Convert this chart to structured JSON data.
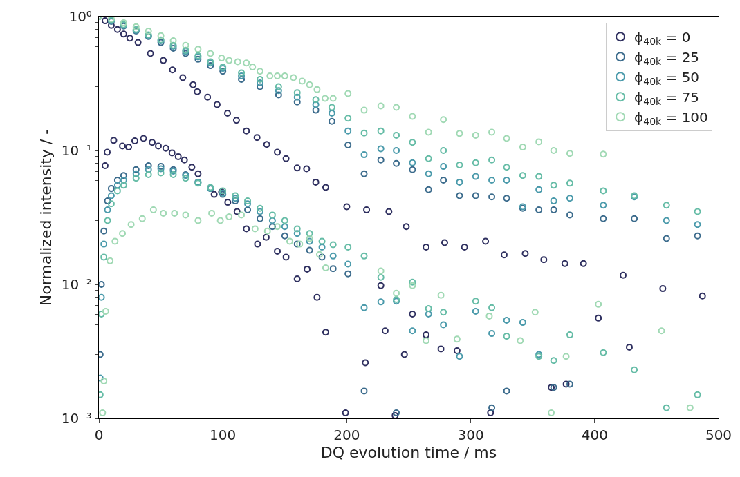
{
  "chart_data": {
    "type": "scatter",
    "xlabel": "DQ evolution time / ms",
    "ylabel": "Normalized intensity / -",
    "xlim": [
      0,
      500
    ],
    "xticks": [
      0,
      100,
      200,
      300,
      400,
      500
    ],
    "ylim": [
      0.001,
      1
    ],
    "log": "y",
    "yticks": [
      {
        "value": 0.001,
        "label": "10⁻³"
      },
      {
        "value": 0.002,
        "label": null
      },
      {
        "value": 0.003,
        "label": null
      },
      {
        "value": 0.004,
        "label": null
      },
      {
        "value": 0.005,
        "label": null
      },
      {
        "value": 0.006,
        "label": null
      },
      {
        "value": 0.007,
        "label": null
      },
      {
        "value": 0.008,
        "label": null
      },
      {
        "value": 0.009,
        "label": null
      },
      {
        "value": 0.01,
        "label": "10⁻²"
      },
      {
        "value": 0.02,
        "label": null
      },
      {
        "value": 0.03,
        "label": null
      },
      {
        "value": 0.04,
        "label": null
      },
      {
        "value": 0.05,
        "label": null
      },
      {
        "value": 0.06,
        "label": null
      },
      {
        "value": 0.07,
        "label": null
      },
      {
        "value": 0.08,
        "label": null
      },
      {
        "value": 0.09,
        "label": null
      },
      {
        "value": 0.1,
        "label": "10⁻¹"
      },
      {
        "value": 0.2,
        "label": null
      },
      {
        "value": 0.3,
        "label": null
      },
      {
        "value": 0.4,
        "label": null
      },
      {
        "value": 0.5,
        "label": null
      },
      {
        "value": 0.6,
        "label": null
      },
      {
        "value": 0.7,
        "label": null
      },
      {
        "value": 0.8,
        "label": null
      },
      {
        "value": 0.9,
        "label": null
      },
      {
        "value": 1,
        "label": "10⁰"
      }
    ],
    "legend": "top right",
    "marker": "circle",
    "series": [
      {
        "name": "ϕ$_{40k}$ = 0",
        "color": "#2e2f5f",
        "x": [
          0,
          5,
          10,
          15,
          20,
          25,
          31.6,
          41.6,
          52,
          59.4,
          67.7,
          76,
          79.4,
          87.7,
          95.4,
          103.8,
          111,
          119,
          127.6,
          135.4,
          144,
          151,
          160,
          167.6,
          175,
          183,
          200,
          216,
          234,
          248,
          264,
          279,
          295,
          312,
          327,
          344,
          359,
          376,
          391,
          423,
          455,
          487,
          5,
          6.7,
          12,
          19,
          24,
          29,
          36,
          43,
          48,
          54,
          59,
          64,
          69,
          75,
          80,
          93,
          99,
          104,
          111.5,
          119,
          128,
          135,
          144,
          151,
          160,
          168,
          176,
          183,
          199,
          215,
          227.5,
          231,
          239,
          246.5,
          253,
          264,
          276,
          289,
          316,
          365,
          377,
          403,
          428
        ],
        "values": [
          1,
          0.93,
          0.86,
          0.8,
          0.74,
          0.69,
          0.64,
          0.53,
          0.47,
          0.4,
          0.35,
          0.31,
          0.275,
          0.25,
          0.22,
          0.19,
          0.168,
          0.14,
          0.125,
          0.111,
          0.097,
          0.087,
          0.074,
          0.073,
          0.058,
          0.053,
          0.038,
          0.036,
          0.035,
          0.027,
          0.019,
          0.0205,
          0.019,
          0.021,
          0.0166,
          0.017,
          0.0153,
          0.0143,
          0.0143,
          0.0117,
          0.0093,
          0.0082,
          0.077,
          0.097,
          0.119,
          0.108,
          0.106,
          0.118,
          0.123,
          0.115,
          0.108,
          0.104,
          0.096,
          0.09,
          0.085,
          0.075,
          0.067,
          0.047,
          0.049,
          0.041,
          0.035,
          0.026,
          0.02,
          0.0225,
          0.0177,
          0.016,
          0.011,
          0.013,
          0.008,
          0.0044,
          0.0011,
          0.0026,
          0.0098,
          0.0045,
          0.00105,
          0.003,
          0.006,
          0.0042,
          0.0033,
          0.0032,
          0.0011,
          0.0017,
          0.0018,
          0.0056,
          0.0034
        ]
      },
      {
        "name": "ϕ$_{40k}$ = 25",
        "color": "#3b6b8c",
        "x": [
          0,
          10,
          20,
          30,
          40,
          50,
          60,
          70,
          80,
          90,
          100,
          115,
          130,
          145,
          160,
          175,
          188,
          201,
          214,
          227.5,
          240,
          253,
          266,
          278,
          291,
          304,
          317,
          329,
          342,
          355,
          367,
          380,
          407,
          432,
          458,
          483,
          1,
          2,
          4,
          7,
          10,
          15,
          20,
          30,
          40,
          50,
          60,
          70,
          80,
          90,
          100,
          110,
          120,
          130,
          140,
          150,
          160,
          170,
          180,
          189,
          201,
          214,
          240,
          317,
          329,
          367,
          380
        ],
        "values": [
          1,
          0.92,
          0.85,
          0.78,
          0.71,
          0.64,
          0.58,
          0.53,
          0.48,
          0.43,
          0.39,
          0.34,
          0.3,
          0.26,
          0.23,
          0.2,
          0.165,
          0.11,
          0.067,
          0.085,
          0.08,
          0.072,
          0.051,
          0.06,
          0.046,
          0.046,
          0.045,
          0.044,
          0.037,
          0.036,
          0.036,
          0.033,
          0.031,
          0.031,
          0.022,
          0.023,
          0.003,
          0.01,
          0.025,
          0.042,
          0.052,
          0.06,
          0.065,
          0.072,
          0.077,
          0.076,
          0.072,
          0.066,
          0.058,
          0.052,
          0.047,
          0.042,
          0.036,
          0.031,
          0.027,
          0.023,
          0.02,
          0.018,
          0.016,
          0.0131,
          0.012,
          0.0016,
          0.0011,
          0.0012,
          0.0016,
          0.0017,
          0.0018
        ]
      },
      {
        "name": "ϕ$_{40k}$ = 50",
        "color": "#4a9aab",
        "x": [
          0,
          10,
          20,
          30,
          40,
          50,
          60,
          70,
          80,
          90,
          100,
          115,
          130,
          145,
          160,
          175,
          188,
          201,
          214,
          227.5,
          240,
          253,
          266,
          278,
          291,
          304,
          317,
          329,
          342,
          355,
          367,
          380,
          407,
          432,
          458,
          483,
          1,
          2,
          4,
          7,
          10,
          15,
          20,
          30,
          40,
          50,
          60,
          70,
          80,
          90,
          100,
          110,
          120,
          130,
          140,
          150,
          160,
          170,
          180,
          189,
          201,
          214,
          227.5,
          240,
          253,
          266,
          278,
          291,
          304,
          317,
          329,
          342,
          355
        ],
        "values": [
          1,
          0.93,
          0.86,
          0.79,
          0.72,
          0.66,
          0.6,
          0.55,
          0.5,
          0.45,
          0.41,
          0.36,
          0.32,
          0.28,
          0.25,
          0.22,
          0.19,
          0.14,
          0.093,
          0.103,
          0.1,
          0.081,
          0.067,
          0.076,
          0.058,
          0.064,
          0.06,
          0.06,
          0.038,
          0.051,
          0.042,
          0.044,
          0.039,
          0.045,
          0.03,
          0.028,
          0.002,
          0.008,
          0.02,
          0.036,
          0.046,
          0.055,
          0.06,
          0.067,
          0.072,
          0.073,
          0.07,
          0.065,
          0.058,
          0.052,
          0.048,
          0.044,
          0.04,
          0.035,
          0.03,
          0.027,
          0.024,
          0.021,
          0.019,
          0.0163,
          0.0142,
          0.0067,
          0.0074,
          0.0075,
          0.0045,
          0.006,
          0.005,
          0.0029,
          0.0063,
          0.0043,
          0.0054,
          0.0052,
          0.003
        ]
      },
      {
        "name": "ϕ$_{40k}$ = 75",
        "color": "#65bca6",
        "x": [
          0,
          10,
          20,
          30,
          40,
          50,
          60,
          70,
          80,
          90,
          100,
          115,
          130,
          145,
          160,
          175,
          188,
          201,
          214,
          227.5,
          240,
          253,
          266,
          278,
          291,
          304,
          317,
          329,
          342,
          355,
          367,
          380,
          407,
          432,
          458,
          483,
          1,
          2,
          4,
          7,
          10,
          15,
          20,
          30,
          40,
          50,
          60,
          70,
          80,
          90,
          100,
          110,
          120,
          130,
          140,
          150,
          160,
          170,
          180,
          189,
          201,
          214,
          227.5,
          240,
          253,
          266,
          278,
          304,
          317,
          329,
          355,
          367,
          380,
          407,
          432,
          458,
          483
        ],
        "values": [
          1,
          0.94,
          0.87,
          0.8,
          0.73,
          0.67,
          0.61,
          0.56,
          0.51,
          0.46,
          0.42,
          0.38,
          0.34,
          0.3,
          0.27,
          0.24,
          0.21,
          0.174,
          0.135,
          0.14,
          0.13,
          0.115,
          0.087,
          0.1,
          0.078,
          0.081,
          0.085,
          0.075,
          0.065,
          0.064,
          0.055,
          0.057,
          0.05,
          0.046,
          0.039,
          0.035,
          0.0015,
          0.006,
          0.016,
          0.03,
          0.04,
          0.05,
          0.055,
          0.062,
          0.066,
          0.068,
          0.066,
          0.062,
          0.057,
          0.053,
          0.05,
          0.046,
          0.042,
          0.037,
          0.033,
          0.03,
          0.026,
          0.024,
          0.021,
          0.0198,
          0.019,
          0.0163,
          0.0113,
          0.0077,
          0.0104,
          0.0066,
          0.0062,
          0.0075,
          0.0067,
          0.0041,
          0.0029,
          0.0027,
          0.0042,
          0.0031,
          0.0023,
          0.0012,
          0.0015
        ]
      },
      {
        "name": "ϕ$_{40k}$ = 100",
        "color": "#a0d9b4",
        "x": [
          0,
          10,
          20,
          30,
          40,
          50,
          60,
          70,
          80,
          90,
          99,
          105,
          112,
          119,
          124,
          130,
          138,
          144,
          150,
          157,
          164,
          170,
          176,
          182.5,
          189,
          201,
          214,
          227.5,
          240,
          253,
          266,
          278,
          291,
          304,
          317,
          329,
          342,
          355,
          367,
          380,
          407,
          3,
          4,
          5.5,
          9,
          13,
          19,
          26,
          35,
          44,
          52,
          61,
          70,
          80,
          91,
          98,
          105,
          115,
          126,
          136,
          144,
          154,
          162,
          170,
          178,
          183,
          227.5,
          240,
          253,
          264,
          276,
          289,
          315,
          340,
          352,
          365,
          377,
          403,
          454,
          477
        ],
        "values": [
          1,
          0.96,
          0.9,
          0.84,
          0.78,
          0.72,
          0.66,
          0.61,
          0.57,
          0.53,
          0.49,
          0.47,
          0.46,
          0.45,
          0.42,
          0.39,
          0.36,
          0.36,
          0.36,
          0.35,
          0.33,
          0.31,
          0.285,
          0.245,
          0.245,
          0.266,
          0.2,
          0.215,
          0.21,
          0.18,
          0.137,
          0.17,
          0.134,
          0.13,
          0.137,
          0.123,
          0.106,
          0.116,
          0.1,
          0.095,
          0.094,
          0.0011,
          0.0019,
          0.0063,
          0.015,
          0.021,
          0.024,
          0.028,
          0.031,
          0.036,
          0.034,
          0.034,
          0.033,
          0.03,
          0.034,
          0.03,
          0.032,
          0.033,
          0.026,
          0.025,
          0.027,
          0.021,
          0.02,
          0.022,
          0.0167,
          0.0133,
          0.0126,
          0.0086,
          0.0098,
          0.0038,
          0.0083,
          0.0039,
          0.0058,
          0.0038,
          0.0062,
          0.0011,
          0.0029,
          0.0071,
          0.0045,
          0.0012
        ]
      }
    ]
  }
}
